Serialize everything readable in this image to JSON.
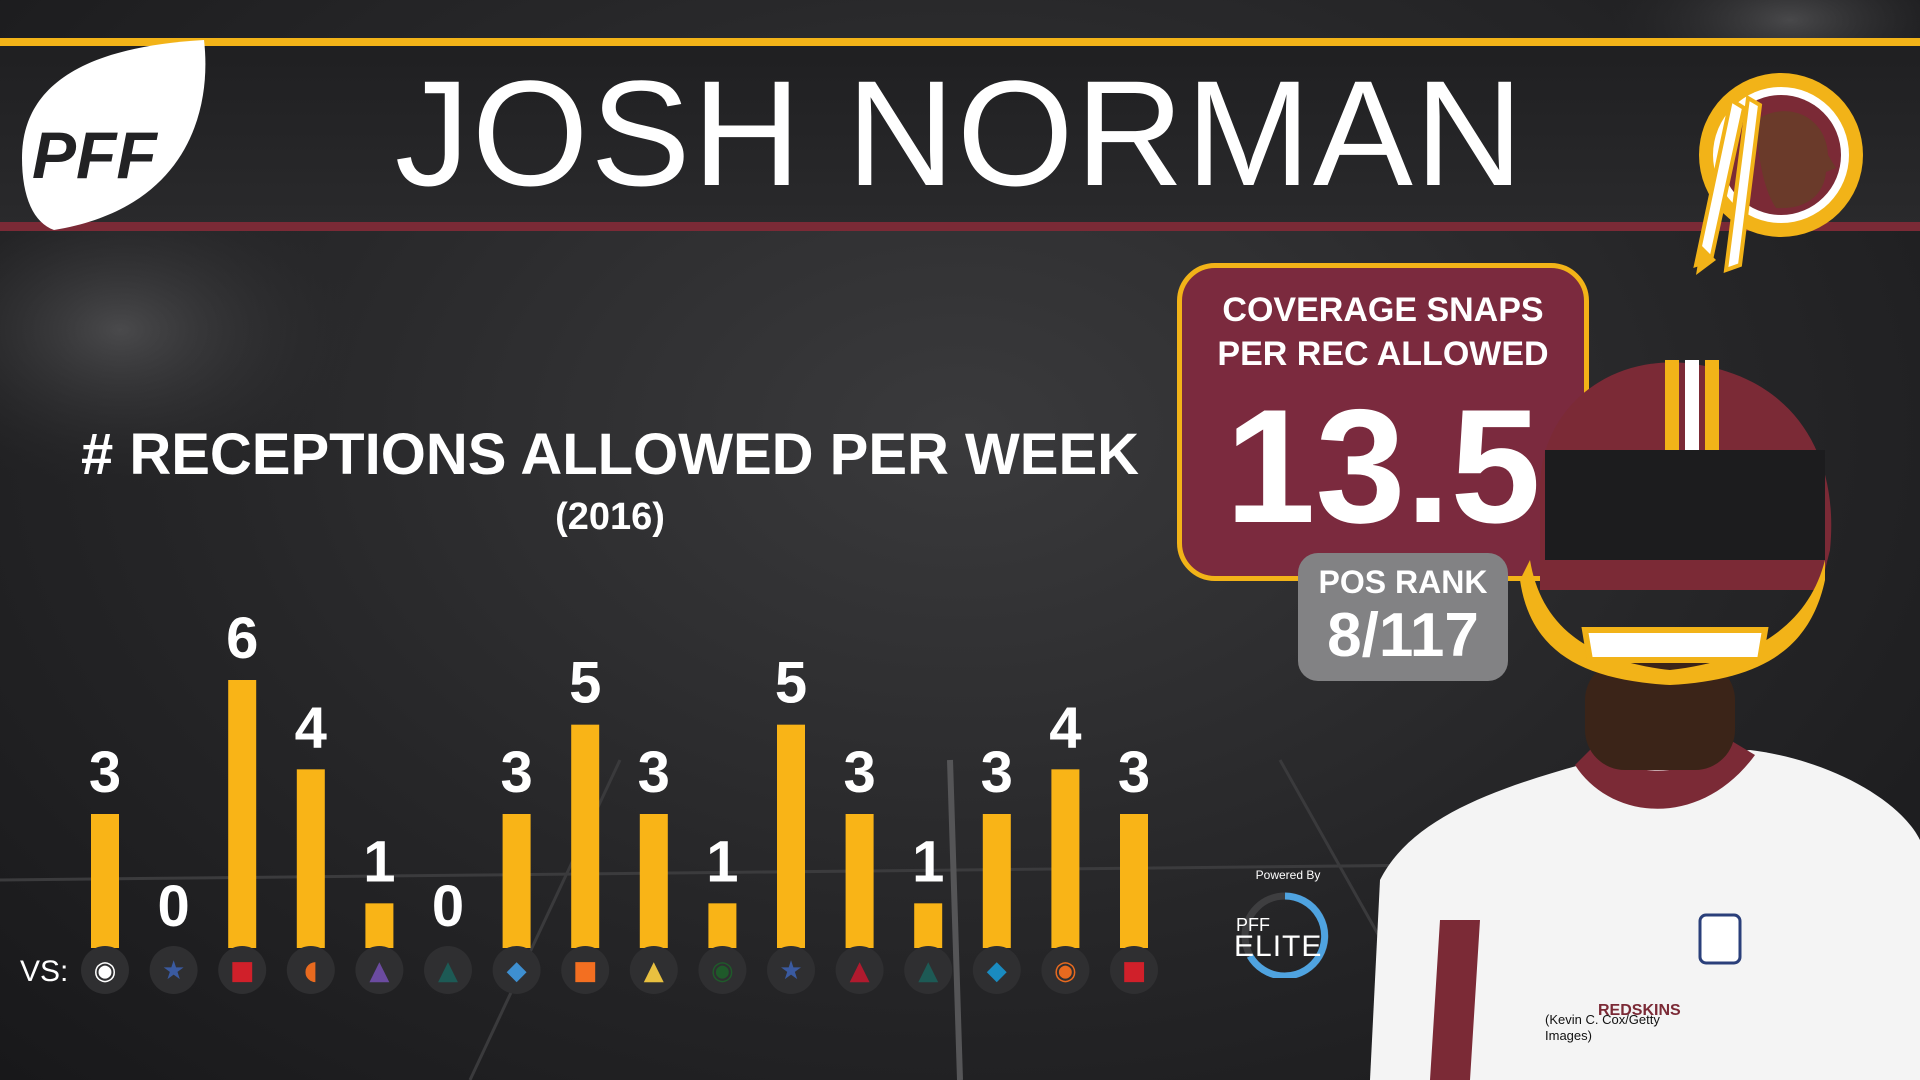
{
  "header": {
    "player_name": "JOSH NORMAN",
    "brand_logo": "PFF",
    "team_logo_icon": "redskins-logo-icon"
  },
  "stat": {
    "label_line1": "COVERAGE SNAPS",
    "label_line2": "PER REC ALLOWED",
    "value": "13.5",
    "rank_label": "POS RANK",
    "rank_value": "8/117"
  },
  "powered_by": {
    "label": "Powered By",
    "brand": "PFF",
    "product": "ELITE"
  },
  "photo_credit": "(Kevin C. Cox/Getty Images)",
  "colors": {
    "gold": "#f2b318",
    "maroon": "#7b2a3e",
    "gray_box": "#828284",
    "bar": "#f9b417"
  },
  "chart_data": {
    "type": "bar",
    "title": "# RECEPTIONS ALLOWED PER WEEK",
    "subtitle": "(2016)",
    "category_prefix": "VS:",
    "categories": [
      "Steelers",
      "Cowboys",
      "Giants",
      "Browns",
      "Ravens",
      "Eagles",
      "Lions",
      "Bengals",
      "Vikings",
      "Packers",
      "Cowboys",
      "Cardinals",
      "Eagles",
      "Panthers",
      "Bears",
      "Giants"
    ],
    "category_icons": [
      "steelers-logo-icon",
      "cowboys-star-icon",
      "giants-ny-icon",
      "browns-helmet-icon",
      "ravens-logo-icon",
      "eagles-logo-icon",
      "lions-logo-icon",
      "bengals-logo-icon",
      "vikings-logo-icon",
      "packers-logo-icon",
      "cowboys-star-icon",
      "cardinals-logo-icon",
      "eagles-logo-icon",
      "panthers-logo-icon",
      "bears-logo-icon",
      "giants-ny-icon"
    ],
    "values": [
      3,
      0,
      6,
      4,
      1,
      0,
      3,
      5,
      3,
      1,
      5,
      3,
      1,
      3,
      4,
      3
    ],
    "ylim": [
      0,
      6
    ],
    "grid": false,
    "legend": "none"
  }
}
